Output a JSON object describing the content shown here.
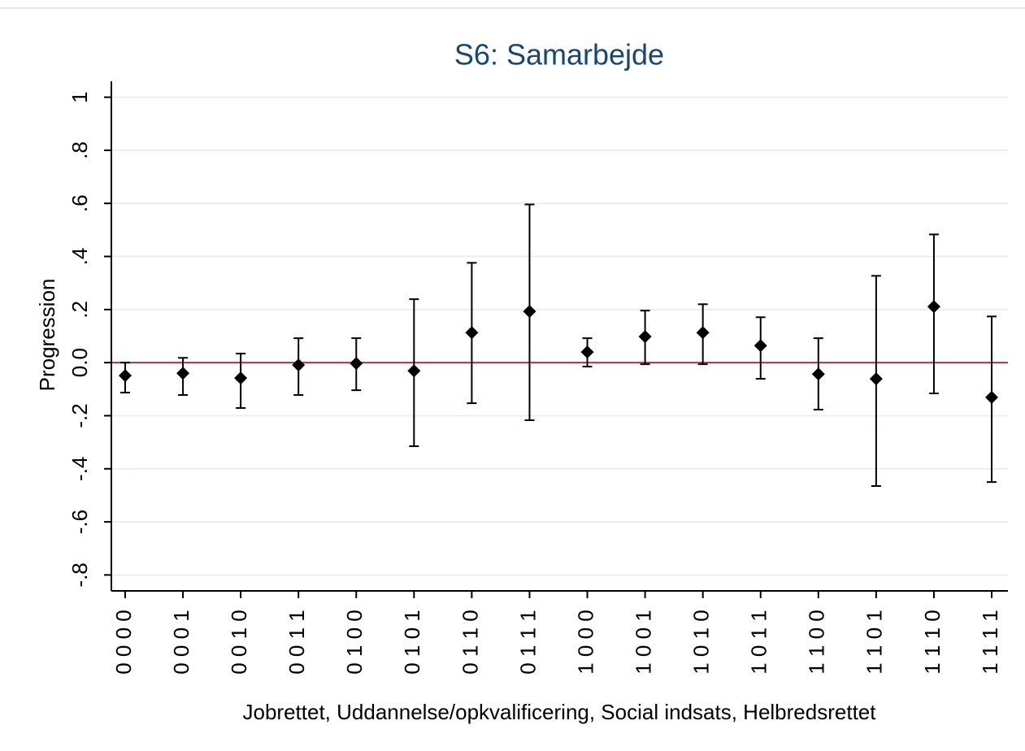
{
  "chart_data": {
    "type": "errorbar",
    "title": "S6: Samarbejde",
    "x_label": "Jobrettet, Uddannelse/opkvalificering, Social indsats, Helbredsrettet",
    "y_label": "Progression",
    "categories": [
      "0 0 0 0",
      "0 0 0 1",
      "0 0 1 0",
      "0 0 1 1",
      "0 1 0 0",
      "0 1 0 1",
      "0 1 1 0",
      "0 1 1 1",
      "1 0 0 0",
      "1 0 0 1",
      "1 0 1 0",
      "1 0 1 1",
      "1 1 0 0",
      "1 1 0 1",
      "1 1 1 0",
      "1 1 1 1"
    ],
    "series": [
      {
        "color": "#000000",
        "values": [
          -0.049,
          -0.04,
          -0.058,
          -0.009,
          -0.003,
          -0.031,
          0.113,
          0.193,
          0.04,
          0.098,
          0.113,
          0.064,
          -0.043,
          -0.061,
          0.211,
          -0.131
        ],
        "lower": [
          -0.113,
          -0.122,
          -0.171,
          -0.122,
          -0.104,
          -0.315,
          -0.153,
          -0.217,
          -0.015,
          -0.006,
          -0.006,
          -0.061,
          -0.177,
          -0.465,
          -0.116,
          -0.45
        ],
        "upper": [
          0.0,
          0.018,
          0.034,
          0.092,
          0.092,
          0.239,
          0.376,
          0.596,
          0.092,
          0.196,
          0.22,
          0.171,
          0.092,
          0.327,
          0.483,
          0.174
        ]
      }
    ],
    "reference_line": {
      "value": 0,
      "color": "#b5314a"
    },
    "ylim": [
      -0.86,
      1.06
    ],
    "yticks": [
      1,
      {
        "value": 0.8,
        "label": ".8"
      },
      {
        "value": 0.6,
        "label": ".6"
      },
      {
        "value": 0.4,
        "label": ".4"
      },
      {
        "value": 0.2,
        "label": ".2"
      },
      {
        "value": 0,
        "label": "0.0"
      },
      {
        "value": -0.2,
        "label": "-.2"
      },
      {
        "value": -0.4,
        "label": "-.4"
      },
      {
        "value": -0.6,
        "label": "-.6"
      },
      {
        "value": -0.8,
        "label": "-.8"
      }
    ],
    "grid": true
  }
}
